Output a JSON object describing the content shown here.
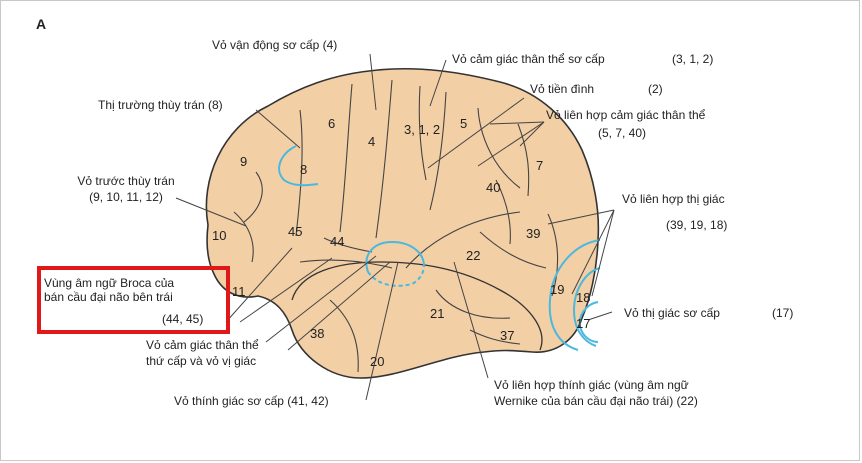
{
  "panel_label": "A",
  "region_numbers": {
    "r6": "6",
    "r4": "4",
    "r312": "3, 1, 2",
    "r5": "5",
    "r9": "9",
    "r8": "8",
    "r7": "7",
    "r40": "40",
    "r10": "10",
    "r45": "45",
    "r44": "44",
    "r39": "39",
    "r22": "22",
    "r11": "11",
    "r19": "19",
    "r18": "18",
    "r17": "17",
    "r21": "21",
    "r38": "38",
    "r37": "37",
    "r20": "20"
  },
  "labels": {
    "motor_primary": "Vỏ vận động sơ cấp (4)",
    "somato_primary": "Vỏ cảm giác thân thể sơ cấp",
    "somato_primary_num": "(3, 1, 2)",
    "vestibular": "Vỏ tiền đình",
    "vestibular_num": "(2)",
    "somato_assoc": "Vỏ liên hợp cảm giác thân thể",
    "somato_assoc_num": "(5, 7, 40)",
    "frontal_eye_field": "Thị trường thùy trán (8)",
    "prefrontal": "Vỏ trước thùy trán",
    "prefrontal_num": "(9, 10, 11, 12)",
    "visual_assoc": "Vỏ liên hợp thị giác",
    "visual_assoc_num": "(39, 19, 18)",
    "broca_line1": "Vùng âm ngữ Broca của",
    "broca_line2": "bán cầu đại não bên trái",
    "broca_num": "(44, 45)",
    "visual_primary": "Vỏ thị giác sơ cấp",
    "visual_primary_num": "(17)",
    "somato_secondary_line1": "Vỏ cảm giác thân thể",
    "somato_secondary_line2": "thứ cấp và vỏ vị giác",
    "auditory_primary": "Vỏ thính giác sơ cấp (41, 42)",
    "auditory_assoc_line1": "Vỏ liên hợp thính giác (vùng âm ngữ",
    "auditory_assoc_line2": "Wernike của bán cầu đại não trái)  (22)"
  },
  "colors": {
    "brain_fill": "#f2cfa5",
    "outline": "#333333",
    "highlight_line": "#4ab8df",
    "box": "#e01818"
  }
}
